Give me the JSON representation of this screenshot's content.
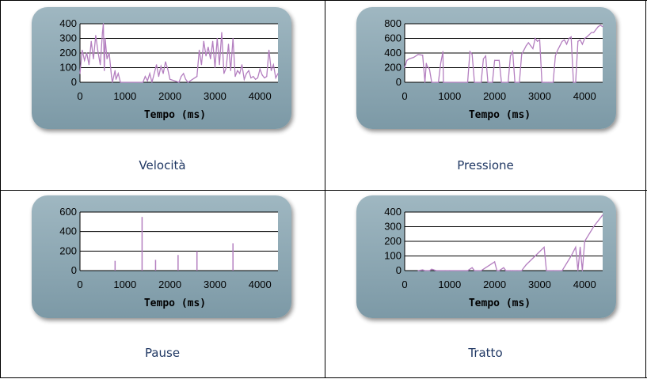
{
  "panels": [
    {
      "caption": "Velocità",
      "chart_data": {
        "type": "line",
        "xlabel": "Tempo (ms)",
        "ylabel": "",
        "xlim": [
          0,
          4400
        ],
        "ylim": [
          0,
          400
        ],
        "xticks": [
          0,
          1000,
          2000,
          3000,
          4000
        ],
        "yticks": [
          0,
          100,
          200,
          300,
          400
        ],
        "grid": true,
        "color": "#b47fc0",
        "x": [
          0,
          50,
          100,
          150,
          200,
          250,
          300,
          350,
          400,
          450,
          500,
          520,
          540,
          560,
          600,
          650,
          700,
          720,
          780,
          800,
          850,
          900,
          1400,
          1450,
          1500,
          1550,
          1600,
          1700,
          1750,
          1800,
          1850,
          1900,
          1950,
          2000,
          2200,
          2250,
          2300,
          2350,
          2400,
          2600,
          2650,
          2700,
          2750,
          2800,
          2850,
          2900,
          2950,
          3000,
          3050,
          3100,
          3150,
          3200,
          3250,
          3300,
          3350,
          3400,
          3450,
          3500,
          3550,
          3600,
          3650,
          3700,
          3750,
          3800,
          3850,
          3900,
          3950,
          4000,
          4050,
          4100,
          4150,
          4200,
          4250,
          4300,
          4350,
          4400
        ],
        "y": [
          60,
          220,
          150,
          200,
          120,
          280,
          160,
          320,
          210,
          120,
          340,
          400,
          80,
          300,
          160,
          200,
          40,
          0,
          80,
          20,
          60,
          0,
          0,
          40,
          10,
          60,
          0,
          120,
          40,
          110,
          60,
          140,
          90,
          20,
          0,
          40,
          60,
          20,
          0,
          40,
          220,
          120,
          280,
          180,
          240,
          160,
          280,
          100,
          300,
          120,
          340,
          60,
          100,
          260,
          80,
          300,
          40,
          80,
          60,
          120,
          20,
          60,
          80,
          30,
          40,
          20,
          30,
          90,
          50,
          30,
          40,
          220,
          80,
          120,
          30,
          60
        ]
      }
    },
    {
      "caption": "Pressione",
      "chart_data": {
        "type": "line",
        "xlabel": "Tempo (ms)",
        "ylabel": "",
        "xlim": [
          0,
          4400
        ],
        "ylim": [
          0,
          800
        ],
        "xticks": [
          0,
          1000,
          2000,
          3000,
          4000
        ],
        "yticks": [
          0,
          200,
          400,
          600,
          800
        ],
        "grid": true,
        "color": "#b47fc0",
        "x": [
          0,
          50,
          100,
          200,
          300,
          400,
          450,
          480,
          500,
          550,
          600,
          680,
          700,
          750,
          800,
          850,
          860,
          870,
          1400,
          1450,
          1500,
          1550,
          1600,
          1700,
          1750,
          1800,
          1850,
          1900,
          1950,
          2000,
          2100,
          2150,
          2200,
          2300,
          2350,
          2400,
          2450,
          2500,
          2550,
          2600,
          2650,
          2700,
          2750,
          2800,
          2850,
          2900,
          2950,
          3000,
          3050,
          3100,
          3150,
          3200,
          3250,
          3300,
          3350,
          3400,
          3450,
          3500,
          3550,
          3600,
          3650,
          3700,
          3750,
          3800,
          3850,
          3900,
          3950,
          4000,
          4050,
          4100,
          4150,
          4200,
          4250,
          4300,
          4350,
          4400
        ],
        "y": [
          200,
          300,
          320,
          340,
          380,
          370,
          0,
          260,
          220,
          180,
          0,
          0,
          0,
          0,
          260,
          420,
          0,
          0,
          0,
          420,
          380,
          0,
          0,
          0,
          320,
          360,
          0,
          0,
          0,
          300,
          300,
          0,
          0,
          0,
          360,
          420,
          0,
          0,
          0,
          380,
          440,
          500,
          540,
          500,
          460,
          600,
          560,
          580,
          0,
          0,
          0,
          0,
          0,
          0,
          360,
          440,
          500,
          560,
          580,
          520,
          600,
          620,
          0,
          0,
          560,
          580,
          520,
          600,
          620,
          650,
          680,
          680,
          720,
          760,
          780,
          760
        ]
      }
    },
    {
      "caption": "Pause",
      "chart_data": {
        "type": "bar",
        "xlabel": "Tempo (ms)",
        "ylabel": "",
        "xlim": [
          0,
          4400
        ],
        "ylim": [
          0,
          600
        ],
        "xticks": [
          0,
          1000,
          2000,
          3000,
          4000
        ],
        "yticks": [
          0,
          200,
          400,
          600
        ],
        "grid": true,
        "color": "#b47fc0",
        "x": [
          780,
          1380,
          1680,
          2180,
          2600,
          3400
        ],
        "values": [
          100,
          550,
          110,
          160,
          200,
          280
        ]
      }
    },
    {
      "caption": "Tratto",
      "chart_data": {
        "type": "line",
        "xlabel": "Tempo (ms)",
        "ylabel": "",
        "xlim": [
          0,
          4400
        ],
        "ylim": [
          0,
          400
        ],
        "xticks": [
          0,
          1000,
          2000,
          3000,
          4000
        ],
        "yticks": [
          0,
          100,
          200,
          300,
          400
        ],
        "grid": true,
        "color": "#b47fc0",
        "x": [
          300,
          400,
          450,
          550,
          600,
          700,
          900,
          1000,
          1400,
          1500,
          1550,
          1700,
          1800,
          2000,
          2050,
          2100,
          2200,
          2250,
          2350,
          2400,
          2500,
          2600,
          2700,
          2900,
          3100,
          3150,
          3300,
          3500,
          3700,
          3800,
          3850,
          3900,
          3950,
          4000,
          4200,
          4400
        ],
        "y": [
          0,
          5,
          0,
          0,
          10,
          0,
          0,
          0,
          0,
          20,
          0,
          0,
          20,
          60,
          0,
          0,
          20,
          0,
          0,
          0,
          0,
          0,
          40,
          100,
          160,
          0,
          0,
          0,
          100,
          160,
          0,
          160,
          0,
          200,
          300,
          380
        ]
      }
    }
  ]
}
